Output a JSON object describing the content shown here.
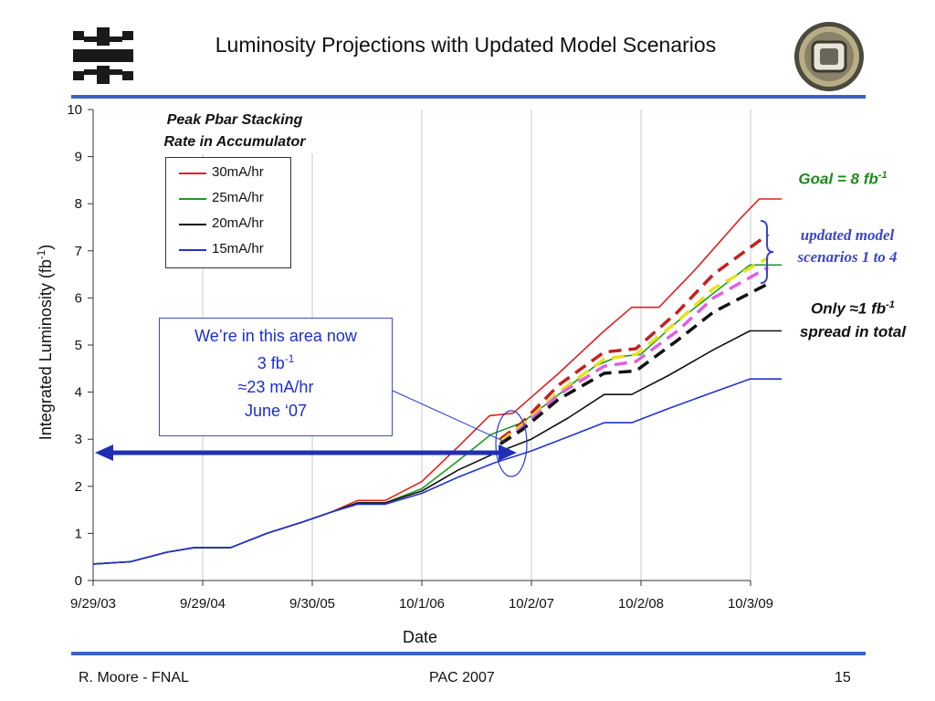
{
  "slide": {
    "title": "Luminosity Projections with Updated Model Scenarios",
    "footer_left": "R. Moore - FNAL",
    "footer_center": "PAC 2007",
    "footer_right": "15"
  },
  "annotations": {
    "goal_prefix": "Goal = 8 fb",
    "goal_sup": "-1",
    "updated_line1": "updated model",
    "updated_line2": "scenarios 1 to 4",
    "spread_prefix": "Only ≈1 fb",
    "spread_sup": "-1",
    "spread_line2": "spread in total",
    "callout_line1": "We’re in this area now",
    "callout_line2_prefix": "3 fb",
    "callout_line2_sup": "-1",
    "callout_line3": "≈23 mA/hr",
    "callout_line4": "June ‘07"
  },
  "colors": {
    "rule": "#3a63c8",
    "goal": "#1c8a1c",
    "updated": "#3b45c8",
    "callout": "#1a2fd0",
    "arrow": "#1f2fb5"
  },
  "chart_data": {
    "type": "line",
    "legend_title_line1": "Peak Pbar Stacking",
    "legend_title_line2": "Rate in Accumulator",
    "xlabel": "Date",
    "ylabel": "Integrated Luminosity (fb",
    "ylabel_sup": "-1",
    "ylabel_end": ")",
    "x_ticks": [
      "9/29/03",
      "9/29/04",
      "9/30/05",
      "10/1/06",
      "10/2/07",
      "10/2/08",
      "10/3/09"
    ],
    "xlim": [
      "9/29/03",
      "10/3/09"
    ],
    "ylim": [
      0,
      10
    ],
    "y_ticks": [
      0,
      1,
      2,
      3,
      4,
      5,
      6,
      7,
      8,
      9,
      10
    ],
    "series": [
      {
        "name": "30mA/hr",
        "color": "#e0201c",
        "points": [
          [
            "9/29/03",
            0.35
          ],
          [
            "2/1/04",
            0.4
          ],
          [
            "6/1/04",
            0.6
          ],
          [
            "9/1/04",
            0.7
          ],
          [
            "1/1/05",
            0.7
          ],
          [
            "5/1/05",
            1.0
          ],
          [
            "9/1/05",
            1.25
          ],
          [
            "12/1/05",
            1.45
          ],
          [
            "3/1/06",
            1.7
          ],
          [
            "6/1/06",
            1.7
          ],
          [
            "10/1/06",
            2.1
          ],
          [
            "2/1/07",
            2.85
          ],
          [
            "5/15/07",
            3.5
          ],
          [
            "8/1/07",
            3.55
          ],
          [
            "1/1/08",
            4.4
          ],
          [
            "6/1/08",
            5.3
          ],
          [
            "9/1/08",
            5.8
          ],
          [
            "12/1/08",
            5.8
          ],
          [
            "4/1/09",
            6.6
          ],
          [
            "9/1/09",
            7.7
          ],
          [
            "11/1/09",
            8.1
          ],
          [
            "1/15/10",
            8.1
          ]
        ]
      },
      {
        "name": "25mA/hr",
        "color": "#1f9a1f",
        "points": [
          [
            "9/29/03",
            0.35
          ],
          [
            "2/1/04",
            0.4
          ],
          [
            "6/1/04",
            0.6
          ],
          [
            "9/1/04",
            0.7
          ],
          [
            "1/1/05",
            0.7
          ],
          [
            "5/1/05",
            1.0
          ],
          [
            "9/1/05",
            1.25
          ],
          [
            "12/1/05",
            1.45
          ],
          [
            "3/1/06",
            1.65
          ],
          [
            "6/1/06",
            1.65
          ],
          [
            "10/1/06",
            1.95
          ],
          [
            "2/1/07",
            2.55
          ],
          [
            "5/20/07",
            3.1
          ],
          [
            "9/1/07",
            3.35
          ],
          [
            "1/1/08",
            3.95
          ],
          [
            "5/1/08",
            4.55
          ],
          [
            "7/15/08",
            4.75
          ],
          [
            "10/1/08",
            4.8
          ],
          [
            "2/1/09",
            5.5
          ],
          [
            "6/1/09",
            6.1
          ],
          [
            "10/1/09",
            6.7
          ],
          [
            "1/15/10",
            6.7
          ]
        ]
      },
      {
        "name": "20mA/hr",
        "color": "#111111",
        "points": [
          [
            "9/29/03",
            0.35
          ],
          [
            "2/1/04",
            0.4
          ],
          [
            "6/1/04",
            0.6
          ],
          [
            "9/1/04",
            0.7
          ],
          [
            "1/1/05",
            0.7
          ],
          [
            "5/1/05",
            1.0
          ],
          [
            "9/1/05",
            1.25
          ],
          [
            "12/1/05",
            1.45
          ],
          [
            "3/1/06",
            1.65
          ],
          [
            "6/1/06",
            1.65
          ],
          [
            "10/1/06",
            1.9
          ],
          [
            "2/1/07",
            2.35
          ],
          [
            "6/1/07",
            2.7
          ],
          [
            "10/1/07",
            3.0
          ],
          [
            "2/1/08",
            3.45
          ],
          [
            "6/1/08",
            3.95
          ],
          [
            "9/1/08",
            3.95
          ],
          [
            "1/1/09",
            4.35
          ],
          [
            "6/1/09",
            4.9
          ],
          [
            "10/1/09",
            5.3
          ],
          [
            "1/15/10",
            5.3
          ]
        ]
      },
      {
        "name": "15mA/hr",
        "color": "#2233d0",
        "points": [
          [
            "9/29/03",
            0.35
          ],
          [
            "2/1/04",
            0.4
          ],
          [
            "6/1/04",
            0.6
          ],
          [
            "9/1/04",
            0.7
          ],
          [
            "1/1/05",
            0.7
          ],
          [
            "5/1/05",
            1.0
          ],
          [
            "9/1/05",
            1.25
          ],
          [
            "12/1/05",
            1.45
          ],
          [
            "3/1/06",
            1.62
          ],
          [
            "6/1/06",
            1.62
          ],
          [
            "10/1/06",
            1.85
          ],
          [
            "2/1/07",
            2.2
          ],
          [
            "6/1/07",
            2.5
          ],
          [
            "10/1/07",
            2.75
          ],
          [
            "2/1/08",
            3.05
          ],
          [
            "6/1/08",
            3.35
          ],
          [
            "9/1/08",
            3.35
          ],
          [
            "1/1/09",
            3.65
          ],
          [
            "6/1/09",
            4.0
          ],
          [
            "10/1/09",
            4.28
          ],
          [
            "1/15/10",
            4.28
          ]
        ]
      },
      {
        "color": "#c42020",
        "dashed": true,
        "points": [
          [
            "6/20/07",
            3.0
          ],
          [
            "9/1/07",
            3.35
          ],
          [
            "1/1/08",
            4.15
          ],
          [
            "6/1/08",
            4.85
          ],
          [
            "9/15/08",
            4.92
          ],
          [
            "2/1/09",
            5.7
          ],
          [
            "6/1/09",
            6.5
          ],
          [
            "12/1/09",
            7.35
          ]
        ]
      },
      {
        "color": "#e8e020",
        "dashed": true,
        "points": [
          [
            "6/20/07",
            2.95
          ],
          [
            "9/1/07",
            3.3
          ],
          [
            "1/1/08",
            4.0
          ],
          [
            "6/1/08",
            4.7
          ],
          [
            "9/15/08",
            4.8
          ],
          [
            "2/1/09",
            5.5
          ],
          [
            "6/1/09",
            6.2
          ],
          [
            "12/1/09",
            6.85
          ]
        ]
      },
      {
        "color": "#e060e0",
        "dashed": true,
        "points": [
          [
            "6/20/07",
            2.9
          ],
          [
            "9/1/07",
            3.25
          ],
          [
            "1/1/08",
            3.95
          ],
          [
            "6/1/08",
            4.55
          ],
          [
            "9/15/08",
            4.65
          ],
          [
            "2/1/09",
            5.3
          ],
          [
            "6/1/09",
            6.0
          ],
          [
            "12/1/09",
            6.65
          ]
        ]
      },
      {
        "color": "#111111",
        "dashed": true,
        "points": [
          [
            "6/20/07",
            2.9
          ],
          [
            "9/1/07",
            3.2
          ],
          [
            "1/1/08",
            3.85
          ],
          [
            "6/1/08",
            4.4
          ],
          [
            "9/15/08",
            4.45
          ],
          [
            "2/1/09",
            5.1
          ],
          [
            "6/1/09",
            5.7
          ],
          [
            "12/1/09",
            6.3
          ]
        ]
      }
    ]
  }
}
